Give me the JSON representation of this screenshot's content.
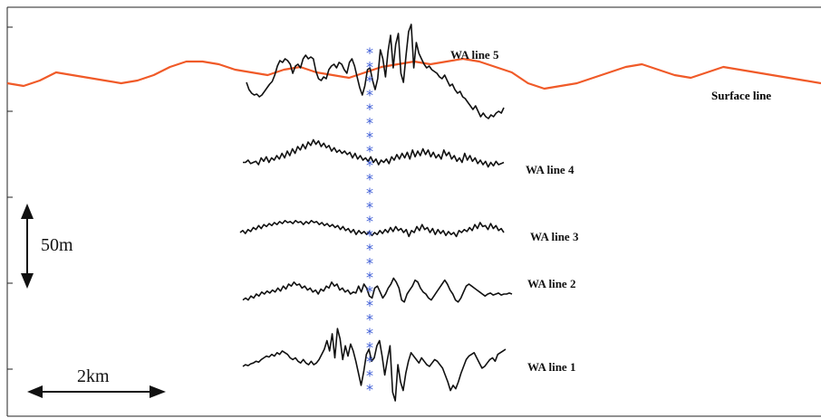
{
  "chart_data": {
    "type": "line",
    "title": "",
    "xlabel": "",
    "ylabel": "",
    "colors": {
      "surface": "#f05a28",
      "trace": "#111111",
      "marker": "#3b5bd6"
    },
    "surface": {
      "name": "Surface line",
      "x": [
        0,
        2,
        4,
        6,
        8,
        10,
        12,
        14,
        16,
        18,
        20,
        22,
        24,
        26,
        28,
        30,
        32,
        34,
        36,
        38,
        40,
        42,
        44,
        46,
        48,
        50,
        52,
        54,
        56,
        58,
        60,
        62,
        64,
        66,
        68,
        70,
        72,
        74,
        76,
        78,
        80,
        82,
        84,
        86,
        88,
        90,
        92,
        94,
        96,
        98,
        100
      ],
      "y": [
        0,
        -1,
        1,
        4,
        3,
        2,
        1,
        0,
        1,
        3,
        6,
        8,
        8,
        7,
        5,
        4,
        3,
        5,
        6,
        4,
        3,
        2,
        4,
        6,
        7,
        8,
        7,
        8,
        9,
        8,
        6,
        4,
        0,
        -2,
        -1,
        0,
        2,
        4,
        6,
        7,
        5,
        3,
        2,
        4,
        6,
        5,
        4,
        3,
        2,
        1,
        0
      ]
    },
    "series": [
      {
        "name": "WA line 5",
        "x": [
          0,
          1,
          2,
          3,
          4,
          5,
          6,
          7,
          8,
          9,
          10,
          11,
          12,
          13,
          14,
          15,
          16,
          17,
          18,
          19,
          20,
          21,
          22,
          23,
          24,
          25,
          26,
          27,
          28,
          29,
          30,
          31,
          32,
          33,
          34,
          35,
          36,
          37,
          38,
          39,
          40,
          41,
          42,
          43,
          44,
          45,
          46,
          47,
          48,
          49,
          50,
          51,
          52,
          53,
          54,
          55,
          56,
          57,
          58,
          59,
          60,
          61,
          62,
          63,
          64,
          65,
          66,
          67,
          68,
          69,
          70,
          71,
          72,
          73,
          74,
          75,
          76,
          77,
          78,
          79,
          80,
          81,
          82,
          83,
          84,
          85,
          86,
          87,
          88,
          89,
          90,
          91,
          92,
          93,
          94,
          95,
          96,
          97,
          98,
          99,
          100
        ],
        "y": [
          4,
          -4,
          -8,
          -10,
          -9,
          -12,
          -10,
          -6,
          -2,
          2,
          5,
          12,
          22,
          28,
          26,
          30,
          28,
          24,
          14,
          22,
          24,
          20,
          30,
          34,
          30,
          32,
          30,
          16,
          8,
          6,
          10,
          8,
          18,
          22,
          24,
          20,
          26,
          24,
          18,
          14,
          26,
          30,
          22,
          10,
          -2,
          -10,
          0,
          18,
          20,
          6,
          -4,
          8,
          40,
          30,
          10,
          38,
          56,
          20,
          46,
          58,
          14,
          4,
          34,
          60,
          68,
          20,
          48,
          36,
          30,
          24,
          20,
          22,
          18,
          16,
          14,
          10,
          8,
          12,
          6,
          0,
          2,
          -4,
          -8,
          -6,
          -12,
          -14,
          -18,
          -22,
          -26,
          -22,
          -28,
          -34,
          -30,
          -34,
          -36,
          -32,
          -34,
          -30,
          -28,
          -30,
          -24
        ]
      },
      {
        "name": "WA line 4",
        "x": [
          0,
          1,
          2,
          3,
          4,
          5,
          6,
          7,
          8,
          9,
          10,
          11,
          12,
          13,
          14,
          15,
          16,
          17,
          18,
          19,
          20,
          21,
          22,
          23,
          24,
          25,
          26,
          27,
          28,
          29,
          30,
          31,
          32,
          33,
          34,
          35,
          36,
          37,
          38,
          39,
          40,
          41,
          42,
          43,
          44,
          45,
          46,
          47,
          48,
          49,
          50,
          51,
          52,
          53,
          54,
          55,
          56,
          57,
          58,
          59,
          60,
          61,
          62,
          63,
          64,
          65,
          66,
          67,
          68,
          69,
          70,
          71,
          72,
          73,
          74,
          75,
          76,
          77,
          78,
          79,
          80,
          81,
          82,
          83,
          84,
          85,
          86,
          87,
          88,
          89,
          90,
          91,
          92,
          93,
          94,
          95,
          96,
          97,
          98,
          99,
          100
        ],
        "y": [
          2,
          2,
          4,
          1,
          2,
          3,
          0,
          6,
          3,
          7,
          2,
          6,
          4,
          8,
          5,
          10,
          6,
          12,
          8,
          14,
          10,
          16,
          13,
          18,
          14,
          20,
          17,
          22,
          18,
          21,
          16,
          19,
          15,
          17,
          12,
          15,
          11,
          13,
          10,
          12,
          9,
          11,
          6,
          10,
          5,
          8,
          4,
          6,
          3,
          7,
          2,
          5,
          0,
          4,
          2,
          5,
          1,
          7,
          4,
          9,
          5,
          10,
          6,
          11,
          5,
          13,
          7,
          12,
          8,
          14,
          9,
          13,
          7,
          11,
          6,
          9,
          5,
          13,
          8,
          11,
          5,
          8,
          3,
          6,
          2,
          10,
          4,
          8,
          3,
          6,
          1,
          4,
          0,
          3,
          -2,
          2,
          -1,
          3,
          0,
          1,
          2
        ]
      },
      {
        "name": "WA line 3",
        "x": [
          0,
          1,
          2,
          3,
          4,
          5,
          6,
          7,
          8,
          9,
          10,
          11,
          12,
          13,
          14,
          15,
          16,
          17,
          18,
          19,
          20,
          21,
          22,
          23,
          24,
          25,
          26,
          27,
          28,
          29,
          30,
          31,
          32,
          33,
          34,
          35,
          36,
          37,
          38,
          39,
          40,
          41,
          42,
          43,
          44,
          45,
          46,
          47,
          48,
          49,
          50,
          51,
          52,
          53,
          54,
          55,
          56,
          57,
          58,
          59,
          60,
          61,
          62,
          63,
          64,
          65,
          66,
          67,
          68,
          69,
          70,
          71,
          72,
          73,
          74,
          75,
          76,
          77,
          78,
          79,
          80,
          81,
          82,
          83,
          84,
          85,
          86,
          87,
          88,
          89,
          90,
          91,
          92,
          93,
          94,
          95,
          96,
          97,
          98,
          99,
          100
        ],
        "y": [
          0,
          2,
          -1,
          3,
          1,
          5,
          3,
          7,
          4,
          8,
          6,
          9,
          7,
          10,
          8,
          11,
          9,
          12,
          10,
          11,
          9,
          12,
          10,
          11,
          8,
          11,
          9,
          12,
          10,
          11,
          8,
          10,
          7,
          9,
          6,
          8,
          5,
          7,
          3,
          6,
          2,
          4,
          0,
          3,
          -2,
          2,
          -1,
          1,
          -2,
          1,
          -3,
          0,
          -2,
          2,
          -1,
          3,
          0,
          5,
          1,
          6,
          2,
          4,
          0,
          3,
          -4,
          2,
          0,
          6,
          2,
          8,
          3,
          5,
          0,
          4,
          -2,
          3,
          -1,
          2,
          -3,
          1,
          -2,
          0,
          -4,
          2,
          0,
          3,
          1,
          5,
          2,
          8,
          4,
          10,
          6,
          7,
          3,
          9,
          4,
          7,
          2,
          4,
          0
        ]
      },
      {
        "name": "WA line 2",
        "x": [
          0,
          1,
          2,
          3,
          4,
          5,
          6,
          7,
          8,
          9,
          10,
          11,
          12,
          13,
          14,
          15,
          16,
          17,
          18,
          19,
          20,
          21,
          22,
          23,
          24,
          25,
          26,
          27,
          28,
          29,
          30,
          31,
          32,
          33,
          34,
          35,
          36,
          37,
          38,
          39,
          40,
          41,
          42,
          43,
          44,
          45,
          46,
          47,
          48,
          49,
          50,
          51,
          52,
          53,
          54,
          55,
          56,
          57,
          58,
          59,
          60,
          61,
          62,
          63,
          64,
          65,
          66,
          67,
          68,
          69,
          70,
          71,
          72,
          73,
          74,
          75,
          76,
          77,
          78,
          79,
          80,
          81,
          82,
          83,
          84,
          85,
          86,
          87,
          88,
          89,
          90,
          91,
          92,
          93,
          94,
          95,
          96,
          97,
          98,
          99,
          100
        ],
        "y": [
          -6,
          -4,
          -6,
          -2,
          -4,
          0,
          -2,
          2,
          0,
          3,
          1,
          4,
          2,
          6,
          3,
          8,
          5,
          10,
          8,
          12,
          9,
          10,
          6,
          8,
          4,
          6,
          2,
          4,
          0,
          5,
          3,
          8,
          6,
          12,
          8,
          10,
          4,
          6,
          2,
          4,
          0,
          2,
          1,
          8,
          2,
          10,
          6,
          -2,
          -4,
          6,
          8,
          2,
          -4,
          0,
          6,
          10,
          16,
          12,
          6,
          -6,
          -8,
          0,
          4,
          8,
          14,
          12,
          6,
          2,
          0,
          -4,
          -6,
          -2,
          2,
          6,
          10,
          14,
          10,
          4,
          0,
          -6,
          -8,
          -4,
          2,
          8,
          10,
          8,
          6,
          4,
          2,
          0,
          -2,
          0,
          1,
          -1,
          0,
          1,
          -1,
          0,
          0,
          1,
          0
        ]
      },
      {
        "name": "WA line 1",
        "x": [
          0,
          1,
          2,
          3,
          4,
          5,
          6,
          7,
          8,
          9,
          10,
          11,
          12,
          13,
          14,
          15,
          16,
          17,
          18,
          19,
          20,
          21,
          22,
          23,
          24,
          25,
          26,
          27,
          28,
          29,
          30,
          31,
          32,
          33,
          34,
          35,
          36,
          37,
          38,
          39,
          40,
          41,
          42,
          43,
          44,
          45,
          46,
          47,
          48,
          49,
          50,
          51,
          52,
          53,
          54,
          55,
          56,
          57,
          58,
          59,
          60,
          61,
          62,
          63,
          64,
          65,
          66,
          67,
          68,
          69,
          70,
          71,
          72,
          73,
          74,
          75,
          76,
          77,
          78,
          79,
          80,
          81,
          82,
          83,
          84,
          85,
          86,
          87,
          88,
          89,
          90,
          91,
          92,
          93,
          94,
          95,
          96,
          97,
          98,
          99,
          100
        ],
        "y": [
          0,
          2,
          1,
          3,
          4,
          6,
          5,
          8,
          10,
          12,
          11,
          14,
          12,
          16,
          14,
          18,
          16,
          14,
          10,
          8,
          10,
          6,
          4,
          8,
          4,
          2,
          6,
          2,
          4,
          8,
          14,
          20,
          30,
          18,
          38,
          10,
          44,
          32,
          8,
          24,
          12,
          26,
          18,
          6,
          -8,
          -22,
          -6,
          14,
          20,
          6,
          10,
          24,
          30,
          12,
          -10,
          8,
          24,
          -30,
          -40,
          2,
          -18,
          -28,
          -8,
          6,
          16,
          12,
          8,
          4,
          10,
          6,
          2,
          0,
          4,
          8,
          6,
          2,
          -2,
          -10,
          -18,
          -28,
          -22,
          -26,
          -18,
          -8,
          0,
          8,
          12,
          14,
          16,
          10,
          4,
          -2,
          0,
          4,
          8,
          10,
          6,
          14,
          16,
          18,
          20
        ]
      }
    ],
    "labels": {
      "surface": "Surface line",
      "line5": "WA line 5",
      "line4": "WA line 4",
      "line3": "WA line 3",
      "line2": "WA line 2",
      "line1": "WA line 1",
      "vertical_scale": "50m",
      "horizontal_scale": "2km"
    },
    "marker": {
      "symbol": "*",
      "count": 25
    }
  }
}
